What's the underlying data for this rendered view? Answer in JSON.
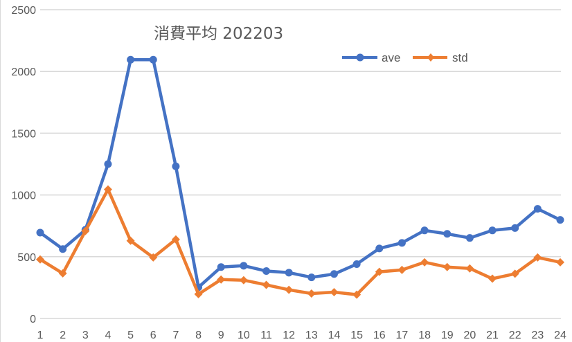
{
  "chart_data": {
    "type": "line",
    "title": "消費平均 202203",
    "xlabel": "",
    "ylabel": "",
    "categories": [
      "1",
      "2",
      "3",
      "4",
      "5",
      "6",
      "7",
      "8",
      "9",
      "10",
      "11",
      "12",
      "13",
      "14",
      "15",
      "16",
      "17",
      "18",
      "19",
      "20",
      "21",
      "22",
      "23",
      "24"
    ],
    "series": [
      {
        "name": "ave",
        "color": "#4472C4",
        "marker": "circle",
        "values": [
          695,
          562,
          718,
          1250,
          2095,
          2095,
          1232,
          253,
          416,
          427,
          384,
          371,
          333,
          360,
          440,
          567,
          612,
          713,
          685,
          652,
          713,
          732,
          888,
          798
        ]
      },
      {
        "name": "std",
        "color": "#ED7D31",
        "marker": "diamond",
        "values": [
          478,
          365,
          708,
          1045,
          629,
          494,
          640,
          197,
          315,
          310,
          272,
          232,
          202,
          213,
          193,
          378,
          393,
          455,
          416,
          405,
          322,
          362,
          494,
          455
        ]
      }
    ],
    "ylim": [
      0,
      2500
    ],
    "yticks": [
      0,
      500,
      1000,
      1500,
      2000,
      2500
    ],
    "grid": true,
    "legend_position": "top-right"
  }
}
